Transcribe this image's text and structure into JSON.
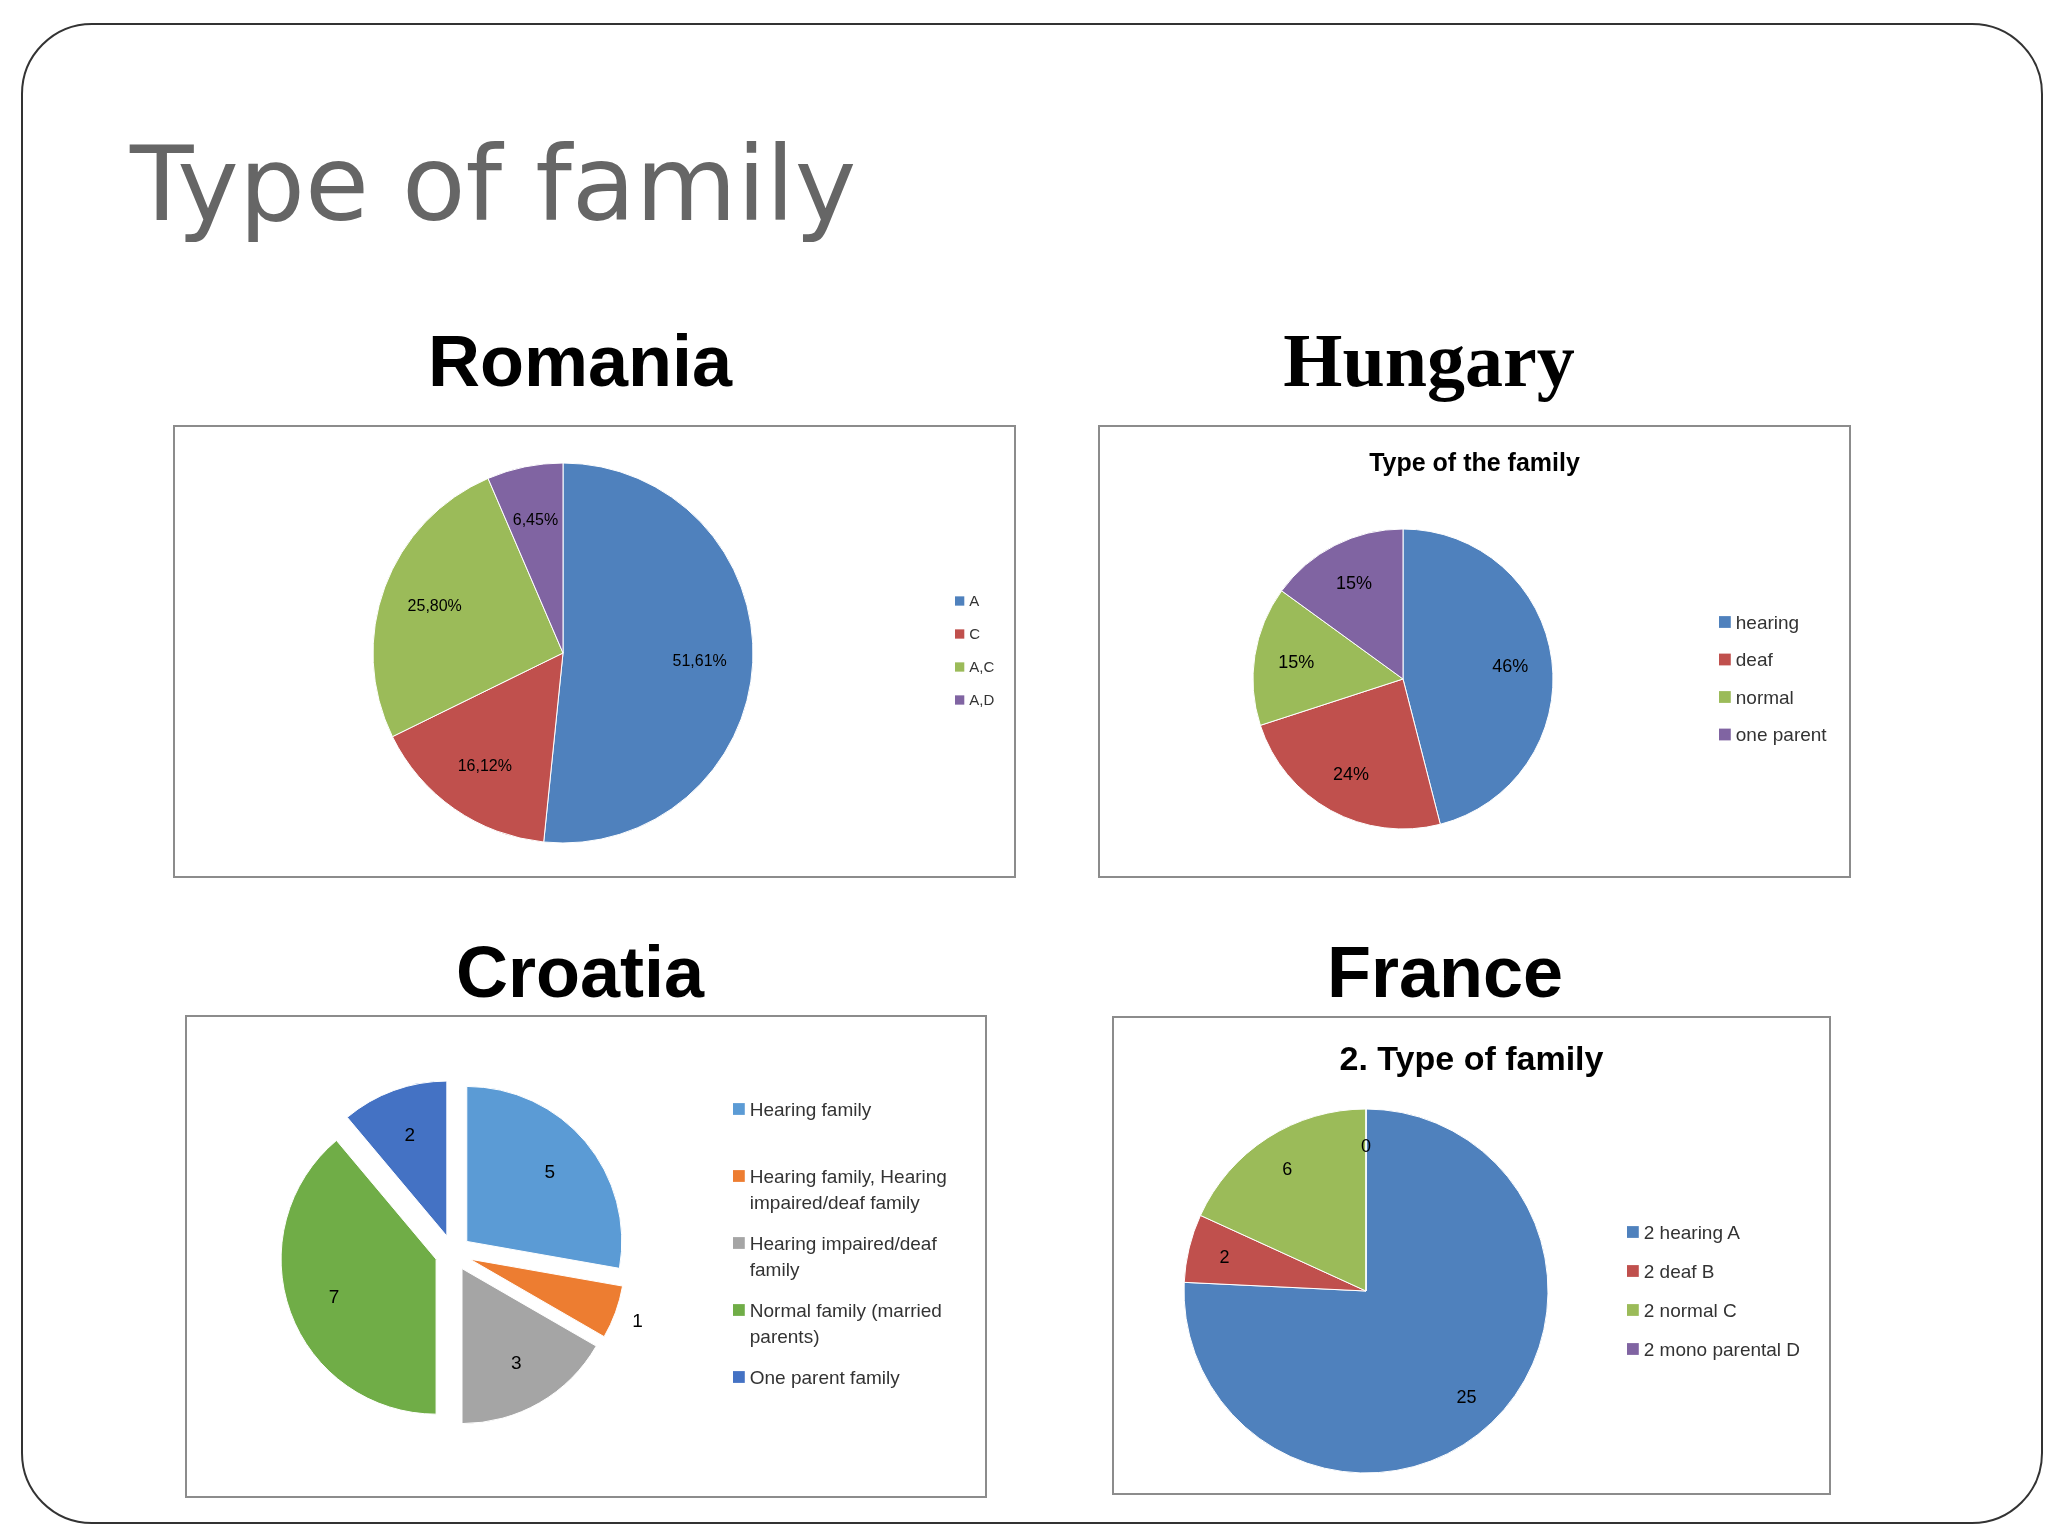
{
  "chart_data": [
    {
      "type": "pie",
      "title": "Romania",
      "annotations": [
        "Type of family"
      ],
      "categories": [
        "A",
        "C",
        "A,C",
        "A,D"
      ],
      "values": [
        51.61,
        16.12,
        25.8,
        6.45
      ],
      "colors": [
        "#4f81bd",
        "#c0504d",
        "#9bbb59",
        "#8064a2"
      ],
      "value_labels": [
        "51,61%",
        "16,12%",
        "25,80%",
        "6,45%"
      ],
      "legend": "right"
    },
    {
      "type": "pie",
      "title": "Hungary",
      "subtitle": "Type of the family",
      "categories": [
        "hearing",
        "deaf",
        "normal",
        "one parent"
      ],
      "values": [
        46,
        24,
        15,
        15
      ],
      "colors": [
        "#4f81bd",
        "#c0504d",
        "#9bbb59",
        "#8064a2"
      ],
      "value_labels": [
        "46%",
        "24%",
        "15%",
        "15%"
      ],
      "legend": "right"
    },
    {
      "type": "pie",
      "title": "Croatia",
      "categories": [
        "Hearing family",
        "Hearing family, Hearing impaired/deaf family",
        "Hearing impaired/deaf family",
        "Normal family (married parents)",
        "One parent family"
      ],
      "values": [
        5,
        1,
        3,
        7,
        2
      ],
      "colors": [
        "#5b9bd5",
        "#ed7d31",
        "#a5a5a5",
        "#70ad47",
        "#4472c4"
      ],
      "data_labels": true,
      "legend": "right"
    },
    {
      "type": "pie",
      "title": "France",
      "subtitle": "2. Type of family",
      "categories": [
        "2 hearing A",
        "2 deaf B",
        "2 normal C",
        "2 mono parental D"
      ],
      "values": [
        25,
        2,
        6,
        0
      ],
      "colors": [
        "#4f81bd",
        "#c0504d",
        "#9bbb59",
        "#8064a2"
      ],
      "value_labels": [
        "25",
        "2",
        "6",
        "0"
      ],
      "legend": "right"
    }
  ]
}
